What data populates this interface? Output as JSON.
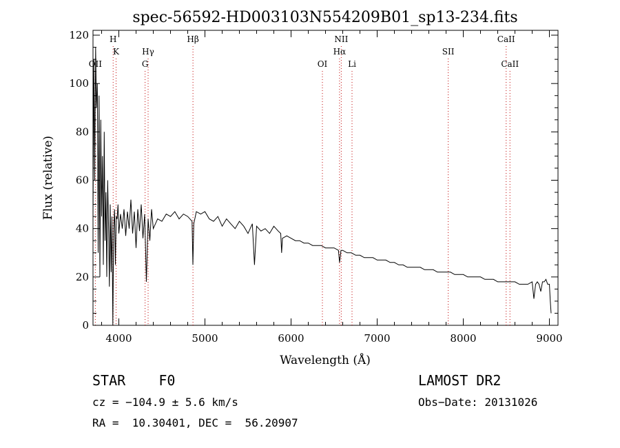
{
  "chart_data": {
    "type": "line",
    "title": "spec-56592-HD003103N554209B01_sp13-234.fits",
    "xlabel": "Wavelength (Å)",
    "ylabel": "Flux (relative)",
    "xlim": [
      3700,
      9100
    ],
    "ylim": [
      0,
      122
    ],
    "xticks": [
      4000,
      5000,
      6000,
      7000,
      8000,
      9000
    ],
    "yticks": [
      0,
      20,
      40,
      60,
      80,
      100,
      120
    ],
    "series": [
      {
        "x": [
          3700,
          3710,
          3720,
          3730,
          3740,
          3750,
          3760,
          3770,
          3780,
          3790,
          3800,
          3810,
          3820,
          3830,
          3840,
          3850,
          3860,
          3870,
          3880,
          3890,
          3900,
          3910,
          3920,
          3930,
          3940,
          3950,
          3960,
          3970,
          3980,
          3990,
          4000,
          4020,
          4040,
          4060,
          4080,
          4100,
          4120,
          4140,
          4160,
          4180,
          4200,
          4220,
          4240,
          4260,
          4280,
          4300,
          4320,
          4340,
          4360,
          4380,
          4400,
          4450,
          4500,
          4550,
          4600,
          4650,
          4700,
          4750,
          4800,
          4850,
          4860,
          4870,
          4900,
          4950,
          5000,
          5050,
          5100,
          5150,
          5200,
          5250,
          5300,
          5350,
          5400,
          5450,
          5500,
          5550,
          5575,
          5600,
          5650,
          5700,
          5750,
          5800,
          5850,
          5880,
          5890,
          5900,
          5950,
          6000,
          6050,
          6100,
          6150,
          6200,
          6250,
          6300,
          6350,
          6400,
          6450,
          6500,
          6550,
          6563,
          6580,
          6600,
          6650,
          6700,
          6750,
          6800,
          6850,
          6900,
          6950,
          7000,
          7050,
          7100,
          7150,
          7200,
          7250,
          7300,
          7350,
          7400,
          7450,
          7500,
          7550,
          7600,
          7650,
          7700,
          7750,
          7800,
          7850,
          7900,
          7950,
          8000,
          8050,
          8100,
          8150,
          8200,
          8250,
          8300,
          8350,
          8400,
          8450,
          8500,
          8550,
          8600,
          8650,
          8700,
          8750,
          8800,
          8820,
          8840,
          8860,
          8880,
          8900,
          8920,
          8940,
          8960,
          8980,
          9000,
          9010,
          9020
        ],
        "values": [
          45,
          110,
          60,
          115,
          90,
          100,
          30,
          95,
          20,
          85,
          45,
          70,
          25,
          80,
          35,
          55,
          20,
          60,
          42,
          16,
          50,
          22,
          45,
          0,
          40,
          48,
          25,
          45,
          44,
          50,
          38,
          46,
          40,
          48,
          37,
          47,
          40,
          52,
          38,
          47,
          32,
          48,
          39,
          50,
          36,
          46,
          18,
          44,
          35,
          48,
          40,
          44,
          43,
          46,
          45,
          47,
          44,
          46,
          45,
          43,
          25,
          42,
          47,
          46,
          47,
          44,
          43,
          45,
          41,
          44,
          42,
          40,
          43,
          41,
          38,
          42,
          25,
          41,
          39,
          40,
          38,
          41,
          39,
          38,
          30,
          36,
          37,
          36,
          35,
          35,
          34,
          34,
          33,
          33,
          33,
          32,
          32,
          32,
          31,
          26,
          31,
          31,
          30,
          30,
          29,
          29,
          28,
          28,
          28,
          27,
          27,
          27,
          26,
          26,
          25,
          25,
          24,
          24,
          24,
          24,
          23,
          23,
          23,
          22,
          22,
          22,
          22,
          21,
          21,
          21,
          20,
          20,
          20,
          20,
          19,
          19,
          19,
          18,
          18,
          18,
          18,
          18,
          17,
          17,
          17,
          18,
          11,
          17,
          18,
          17,
          14,
          18,
          18,
          19,
          17,
          17,
          10,
          5
        ]
      }
    ],
    "lines": [
      {
        "label": "OII",
        "x": 3727,
        "row": 3
      },
      {
        "label": "H",
        "x": 3934,
        "row": 1
      },
      {
        "label": "K",
        "x": 3968,
        "row": 2
      },
      {
        "label": "Hγ",
        "x": 4340,
        "row": 2
      },
      {
        "label": "G",
        "x": 4305,
        "row": 3
      },
      {
        "label": "Hβ",
        "x": 4861,
        "row": 1
      },
      {
        "label": "OI",
        "x": 6364,
        "row": 3
      },
      {
        "label": "NII",
        "x": 6583,
        "row": 1
      },
      {
        "label": "Hα",
        "x": 6563,
        "row": 2
      },
      {
        "label": "Li",
        "x": 6708,
        "row": 3
      },
      {
        "label": "SII",
        "x": 7825,
        "row": 2
      },
      {
        "label": "CaII",
        "x": 8498,
        "row": 1
      },
      {
        "label": "CaII",
        "x": 8542,
        "row": 3
      }
    ],
    "grid": false,
    "legend": "none"
  },
  "info": {
    "object_class": "STAR    F0",
    "survey": "LAMOST DR2",
    "redshift": "cz = −104.9 ± 5.6 km/s",
    "obs_date": "Obs−Date: 20131026",
    "coords": "RA =  10.30401, DEC =  56.20907"
  }
}
